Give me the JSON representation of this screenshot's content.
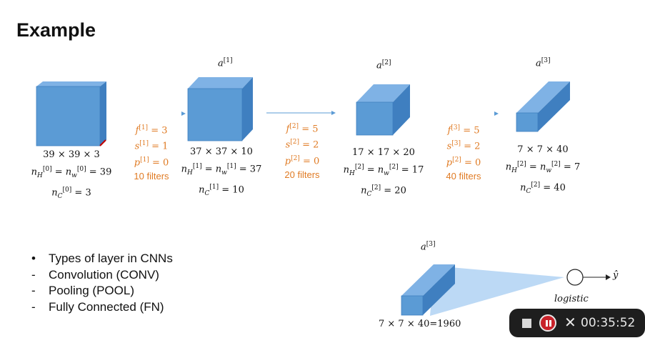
{
  "title": "Example",
  "activations": {
    "a1": "a",
    "a1_sup": "[1]",
    "a2": "a",
    "a2_sup": "[2]",
    "a3": "a",
    "a3_sup": "[3]",
    "a3b": "a",
    "a3b_sup": "[3]"
  },
  "volume0": {
    "dims": "39 × 39 × 3",
    "nh_sub": "H",
    "nh_sup": "[0]",
    "nw_sub": "w",
    "nw_sup": "[0]",
    "eq1": "= 39",
    "nc_sub": "C",
    "nc_sup": "[0]",
    "eq2": "= 3"
  },
  "volume1": {
    "dims": "37 × 37 × 10",
    "nh_sub": "H",
    "nh_sup": "[1]",
    "nw_sub": "w",
    "nw_sup": "[1]",
    "eq1": "= 37",
    "nc_sub": "C",
    "nc_sup": "[1]",
    "eq2": "= 10"
  },
  "volume2": {
    "dims": "17 × 17 × 20",
    "nh_sub": "H",
    "nh_sup": "[2]",
    "nw_sub": "w",
    "nw_sup": "[2]",
    "eq1": "= 17",
    "nc_sub": "C",
    "nc_sup": "[2]",
    "eq2": "= 20"
  },
  "volume3": {
    "dims": "7 × 7 × 40",
    "nh_sub": "H",
    "nh_sup": "[2]",
    "nw_sub": "w",
    "nw_sup": "[2]",
    "eq1": "= 7",
    "nc_sub": "C",
    "nc_sup": "[2]",
    "eq2": "= 40"
  },
  "layer1": {
    "f_sup": "[1]",
    "f_val": "= 3",
    "s_sup": "[1]",
    "s_val": "= 1",
    "p_sup": "[1]",
    "p_val": "= 0",
    "filters": "10 filters"
  },
  "layer2": {
    "f_sup": "[2]",
    "f_val": "= 5",
    "s_sup": "[2]",
    "s_val": "= 2",
    "p_sup": "[2]",
    "p_val": "= 0",
    "filters": "20 filters"
  },
  "layer3": {
    "f_sup": "[3]",
    "f_val": "= 5",
    "s_sup": "[3]",
    "s_val": "= 2",
    "p_sup": "[2]",
    "p_val": "= 0",
    "filters": "40 filters"
  },
  "bullets": [
    {
      "marker": "•",
      "text": "Types of layer in CNNs"
    },
    {
      "marker": "-",
      "text": "Convolution (CONV)"
    },
    {
      "marker": "-",
      "text": "Pooling (POOL)"
    },
    {
      "marker": "-",
      "text": "Fully Connected (FN)"
    }
  ],
  "flatten": {
    "label": "7 × 7 × 40=1960",
    "logistic": "logistic",
    "output": "ŷ"
  },
  "colors": {
    "cube_front": "#5b9bd5",
    "cube_top": "#7fb2e5",
    "cube_side": "#3f7fc0",
    "orange": "#e07b24",
    "cone": "#bcd9f5",
    "record_bar": "#1e1e1e",
    "record_btn": "#c8222a"
  },
  "recorder": {
    "stop_icon": "stop-icon",
    "pause_icon": "pause-icon",
    "close_symbol": "✕",
    "timer": "00:35:52"
  }
}
